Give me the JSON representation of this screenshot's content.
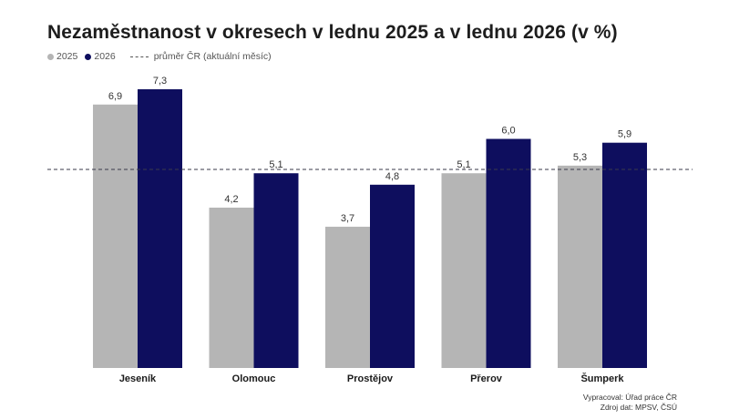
{
  "chart_data": {
    "type": "bar",
    "title": "Nezaměstnanost v okresech v lednu 2025 a v lednu 2026 (v %)",
    "categories": [
      "Jeseník",
      "Olomouc",
      "Prostějov",
      "Přerov",
      "Šumperk"
    ],
    "series": [
      {
        "name": "2025",
        "values": [
          6.9,
          4.2,
          3.7,
          5.1,
          5.3
        ],
        "labels": [
          "6,9",
          "4,2",
          "3,7",
          "5,1",
          "5,3"
        ],
        "color": "#b5b5b5"
      },
      {
        "name": "2026",
        "values": [
          7.3,
          5.1,
          4.8,
          6.0,
          5.9
        ],
        "labels": [
          "7,3",
          "5,1",
          "4,8",
          "6,0",
          "5,9"
        ],
        "color": "#0e0e5e"
      }
    ],
    "reference_line": {
      "label": "průměr ČR (aktuální měsíc)",
      "value": 5.2,
      "style": "dashed"
    },
    "ylim": [
      0,
      7.3
    ],
    "grid": false,
    "legend": "top-left"
  },
  "footer": {
    "line1": "Vypracoval: Úřad práce ČR",
    "line2": "Zdroj dat: MPSV, ČSÚ"
  }
}
